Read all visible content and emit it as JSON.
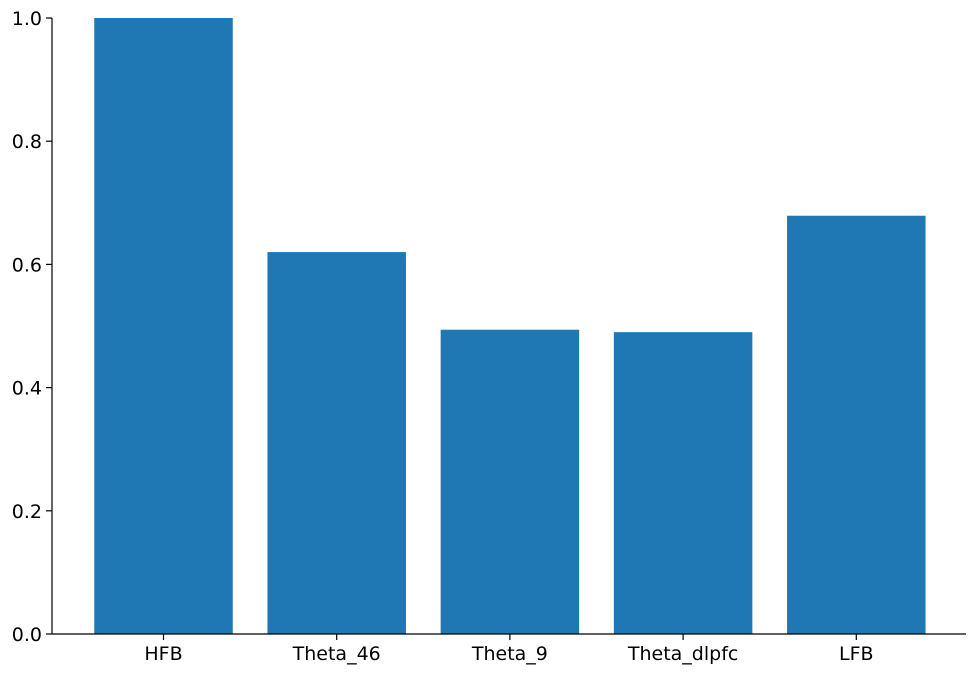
{
  "chart_data": {
    "type": "bar",
    "title": "",
    "xlabel": "",
    "ylabel": "",
    "categories": [
      "HFB",
      "Theta_46",
      "Theta_9",
      "Theta_dlpfc",
      "LFB"
    ],
    "values": [
      1.0,
      0.62,
      0.494,
      0.49,
      0.679
    ],
    "ylim": [
      0.0,
      1.0
    ],
    "yticks": [
      0.0,
      0.2,
      0.4,
      0.6,
      0.8,
      1.0
    ],
    "ytick_labels": [
      "0.0",
      "0.2",
      "0.4",
      "0.6",
      "0.8",
      "1.0"
    ],
    "bar_color": "#1f77b4",
    "axis_color": "#000000",
    "grid": false,
    "legend": "none"
  }
}
